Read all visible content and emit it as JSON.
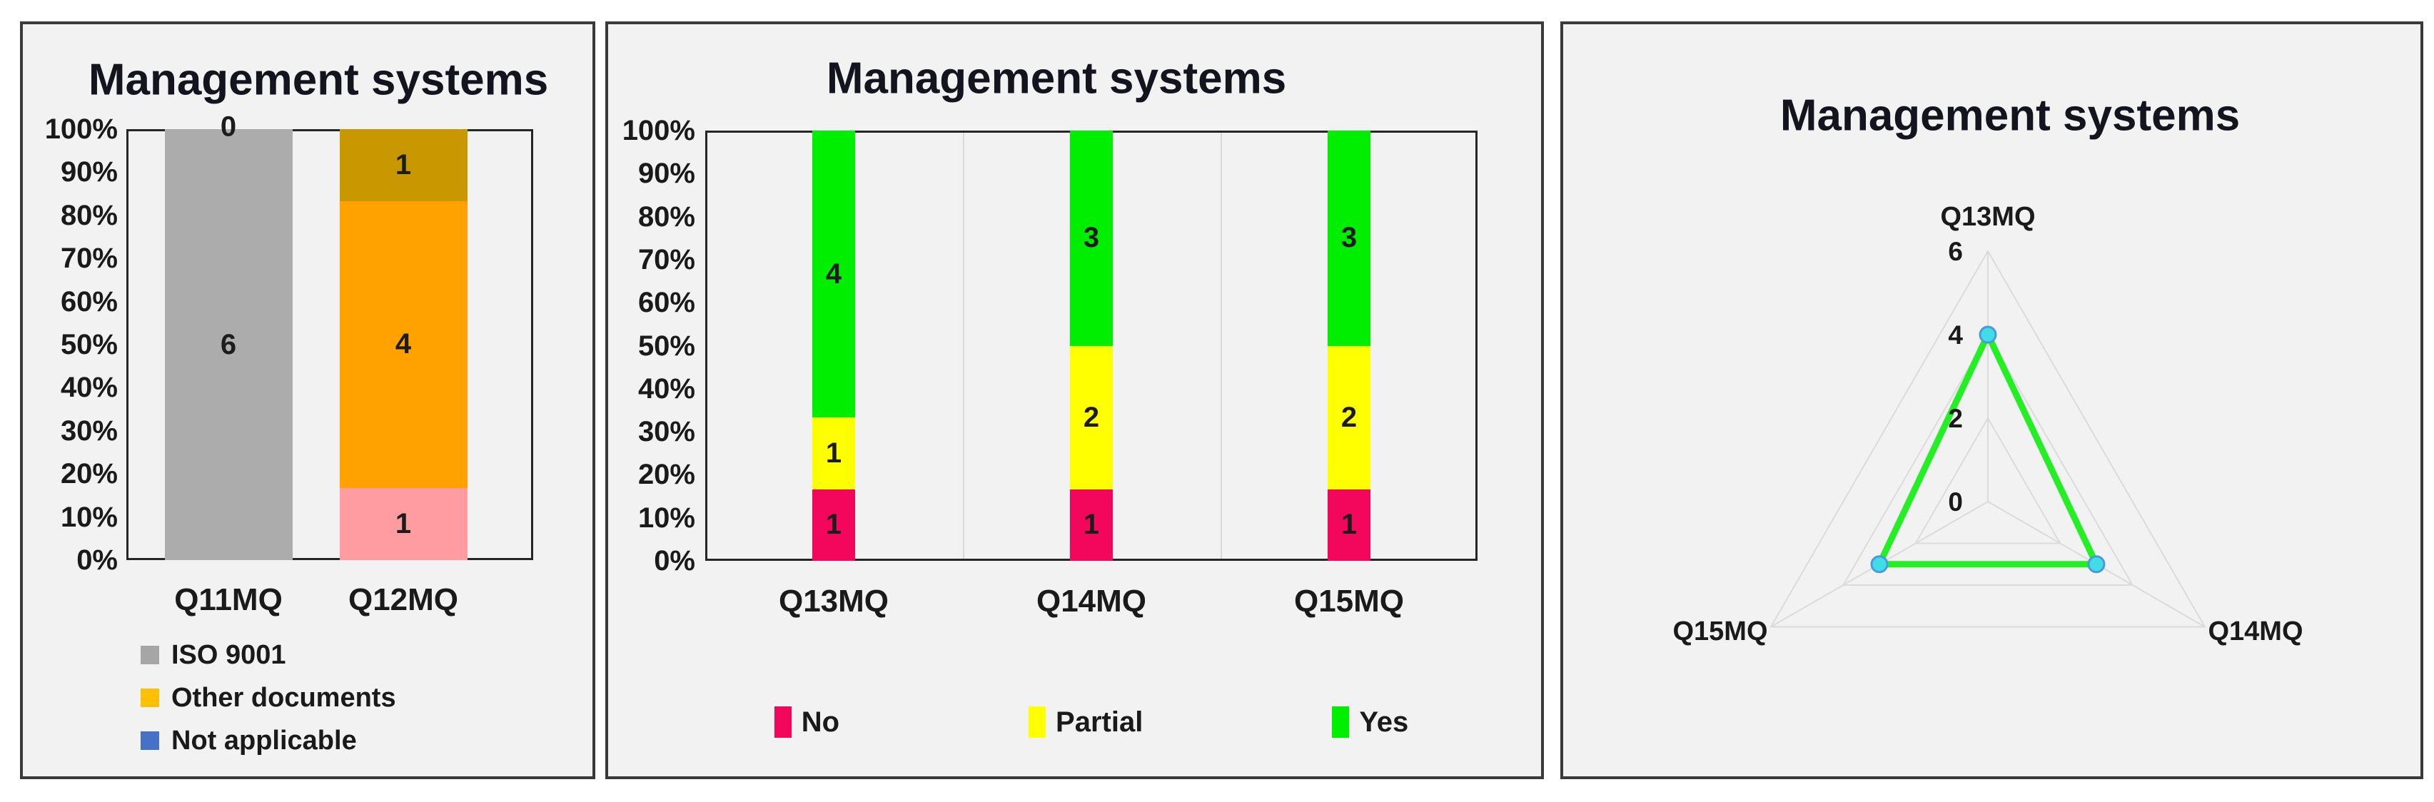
{
  "chart_data": [
    {
      "type": "bar",
      "stacked": true,
      "title": "Management systems",
      "categories": [
        "Q11MQ",
        "Q12MQ"
      ],
      "y_ticks": [
        "0%",
        "10%",
        "20%",
        "30%",
        "40%",
        "50%",
        "60%",
        "70%",
        "80%",
        "90%",
        "100%"
      ],
      "ylim_percent": [
        0,
        100
      ],
      "grid": "off",
      "stacks": [
        [
          {
            "value": 6,
            "color": "#ACACAC"
          }
        ],
        [
          {
            "value": 1,
            "color": "#FE9CA2"
          },
          {
            "value": 4,
            "color": "#FFA200"
          },
          {
            "value": 1,
            "color": "#C99700"
          }
        ]
      ],
      "outside_labels": [
        {
          "category_index": 0,
          "text": "0"
        }
      ],
      "legend_position": "bottom-left",
      "legend": [
        {
          "label": "ISO 9001",
          "color": "#A6A6A6"
        },
        {
          "label": "Other documents",
          "color": "#FFC000"
        },
        {
          "label": "Not applicable",
          "color": "#4472C4"
        }
      ]
    },
    {
      "type": "bar",
      "stacked": true,
      "title": "Management systems",
      "categories": [
        "Q13MQ",
        "Q14MQ",
        "Q15MQ"
      ],
      "y_ticks": [
        "0%",
        "10%",
        "20%",
        "30%",
        "40%",
        "50%",
        "60%",
        "70%",
        "80%",
        "90%",
        "100%"
      ],
      "ylim_percent": [
        0,
        100
      ],
      "grid": "vertical-band-separators",
      "series": [
        {
          "name": "No",
          "color": "#F2075D",
          "values": [
            1,
            1,
            1
          ]
        },
        {
          "name": "Partial",
          "color": "#FFFF00",
          "values": [
            1,
            2,
            2
          ]
        },
        {
          "name": "Yes",
          "color": "#00EF00",
          "values": [
            4,
            3,
            3
          ]
        }
      ],
      "legend_position": "bottom-center",
      "legend": [
        {
          "label": "No",
          "color": "#F2075D"
        },
        {
          "label": "Partial",
          "color": "#FFFF00"
        },
        {
          "label": "Yes",
          "color": "#00EF00"
        }
      ]
    },
    {
      "type": "radar",
      "title": "Management systems",
      "categories": [
        "Q13MQ",
        "Q14MQ",
        "Q15MQ"
      ],
      "values": [
        4,
        3,
        3
      ],
      "rlim": [
        0,
        6
      ],
      "r_ticks": [
        "6",
        "4",
        "2",
        "0"
      ],
      "ring_levels": [
        2,
        4,
        6
      ],
      "line_color": "#24EE24",
      "marker_fill": "#40DCE8",
      "marker_stroke": "#4A9BD5",
      "grid_color": "#DBDBDB"
    }
  ]
}
